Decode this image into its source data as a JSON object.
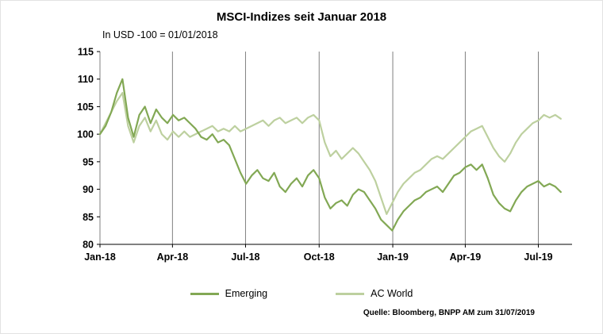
{
  "title": "MSCI-Indizes seit Januar 2018",
  "subtitle": "In USD -100 = 01/01/2018",
  "source": "Quelle: Bloomberg, BNPP AM zum 31/07/2019",
  "chart_data": {
    "type": "line",
    "title": "MSCI-Indizes seit Januar 2018",
    "subtitle": "In USD -100 = 01/01/2018",
    "x_unit": "weeks since 01/01/2018",
    "x_range_weeks": [
      0,
      84
    ],
    "x_tick_weeks": [
      0,
      12.9,
      25.9,
      39,
      52.1,
      65,
      78
    ],
    "x_tick_labels": [
      "Jan-18",
      "Apr-18",
      "Jul-18",
      "Oct-18",
      "Jan-19",
      "Apr-19",
      "Jul-19"
    ],
    "ylim": [
      80,
      115
    ],
    "y_ticks": [
      80,
      85,
      90,
      95,
      100,
      105,
      110,
      115
    ],
    "grid": "vertical-only",
    "legend_position": "bottom",
    "series": [
      {
        "name": "Emerging",
        "color": "#82a854",
        "values": [
          100.0,
          101.5,
          104.0,
          107.5,
          110.0,
          103.0,
          99.5,
          103.5,
          105.0,
          102.0,
          104.5,
          103.0,
          102.0,
          103.5,
          102.5,
          103.0,
          102.0,
          101.0,
          99.5,
          99.0,
          100.0,
          98.5,
          99.0,
          98.0,
          95.5,
          93.0,
          91.0,
          92.5,
          93.5,
          92.0,
          91.5,
          93.0,
          90.5,
          89.5,
          91.0,
          92.0,
          90.5,
          92.5,
          93.5,
          92.0,
          88.5,
          86.5,
          87.5,
          88.0,
          87.0,
          89.0,
          90.0,
          89.5,
          88.0,
          86.5,
          84.5,
          83.5,
          82.5,
          84.5,
          86.0,
          87.0,
          88.0,
          88.5,
          89.5,
          90.0,
          90.5,
          89.5,
          91.0,
          92.5,
          93.0,
          94.0,
          94.5,
          93.5,
          94.5,
          92.0,
          89.0,
          87.5,
          86.5,
          86.0,
          88.0,
          89.5,
          90.5,
          91.0,
          91.5,
          90.5,
          91.0,
          90.5,
          89.5
        ]
      },
      {
        "name": "AC World",
        "color": "#bdd09f",
        "values": [
          100.0,
          102.0,
          104.0,
          106.0,
          107.5,
          101.5,
          98.5,
          101.5,
          103.0,
          100.5,
          102.5,
          100.0,
          99.0,
          100.5,
          99.5,
          100.5,
          99.5,
          100.0,
          100.5,
          101.0,
          101.5,
          100.5,
          101.0,
          100.5,
          101.5,
          100.5,
          101.0,
          101.5,
          102.0,
          102.5,
          101.5,
          102.5,
          103.0,
          102.0,
          102.5,
          103.0,
          102.0,
          103.0,
          103.5,
          102.5,
          98.5,
          96.0,
          97.0,
          95.5,
          96.5,
          97.5,
          96.5,
          95.0,
          93.5,
          91.5,
          88.5,
          85.5,
          87.5,
          89.5,
          91.0,
          92.0,
          93.0,
          93.5,
          94.5,
          95.5,
          96.0,
          95.5,
          96.5,
          97.5,
          98.5,
          99.5,
          100.5,
          101.0,
          101.5,
          99.5,
          97.5,
          96.0,
          95.0,
          96.5,
          98.5,
          100.0,
          101.0,
          102.0,
          102.5,
          103.5,
          103.0,
          103.5,
          102.8
        ]
      }
    ],
    "colors": {
      "gridline": "#808080",
      "axis": "#000000",
      "emerging_line": "#82a854",
      "ac_world_line": "#bdd09f"
    }
  }
}
